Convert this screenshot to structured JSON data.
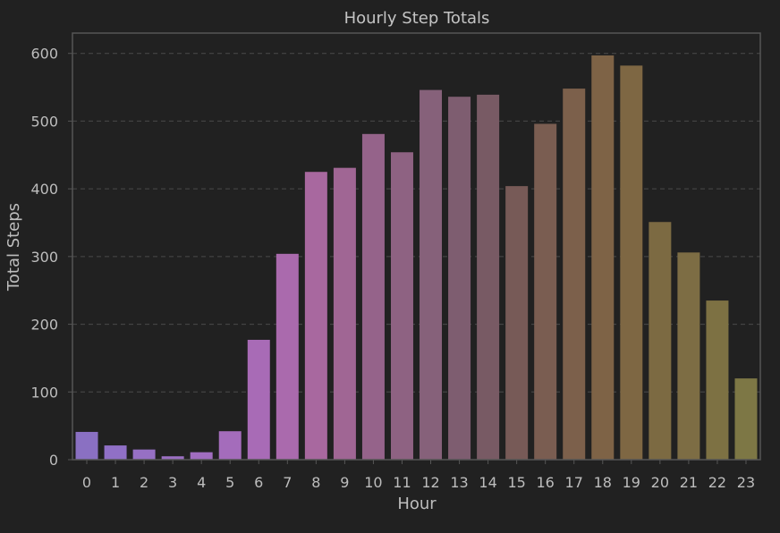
{
  "chart_data": {
    "type": "bar",
    "title": "Hourly Step Totals",
    "xlabel": "Hour",
    "ylabel": "Total Steps",
    "categories": [
      "0",
      "1",
      "2",
      "3",
      "4",
      "5",
      "6",
      "7",
      "8",
      "9",
      "10",
      "11",
      "12",
      "13",
      "14",
      "15",
      "16",
      "17",
      "18",
      "19",
      "20",
      "21",
      "22",
      "23"
    ],
    "values": [
      41,
      21,
      15,
      5,
      11,
      42,
      177,
      304,
      425,
      431,
      481,
      454,
      546,
      536,
      539,
      404,
      496,
      548,
      597,
      582,
      351,
      306,
      235,
      120
    ],
    "colors": [
      "#8a70c2",
      "#9070c6",
      "#9670c4",
      "#9b6fc2",
      "#a06dbf",
      "#a46cbb",
      "#a86bb6",
      "#aa6aad",
      "#a8689f",
      "#a06694",
      "#95638a",
      "#8e6282",
      "#86617a",
      "#7e5d70",
      "#785a64",
      "#775a57",
      "#7a5d51",
      "#7c604b",
      "#7e6346",
      "#7e6743",
      "#7c6a42",
      "#7d6d44",
      "#7d7143",
      "#7d7745"
    ],
    "yticks": [
      0,
      100,
      200,
      300,
      400,
      500,
      600
    ],
    "ylim": [
      0,
      630
    ],
    "grid": true,
    "legend": "none"
  }
}
